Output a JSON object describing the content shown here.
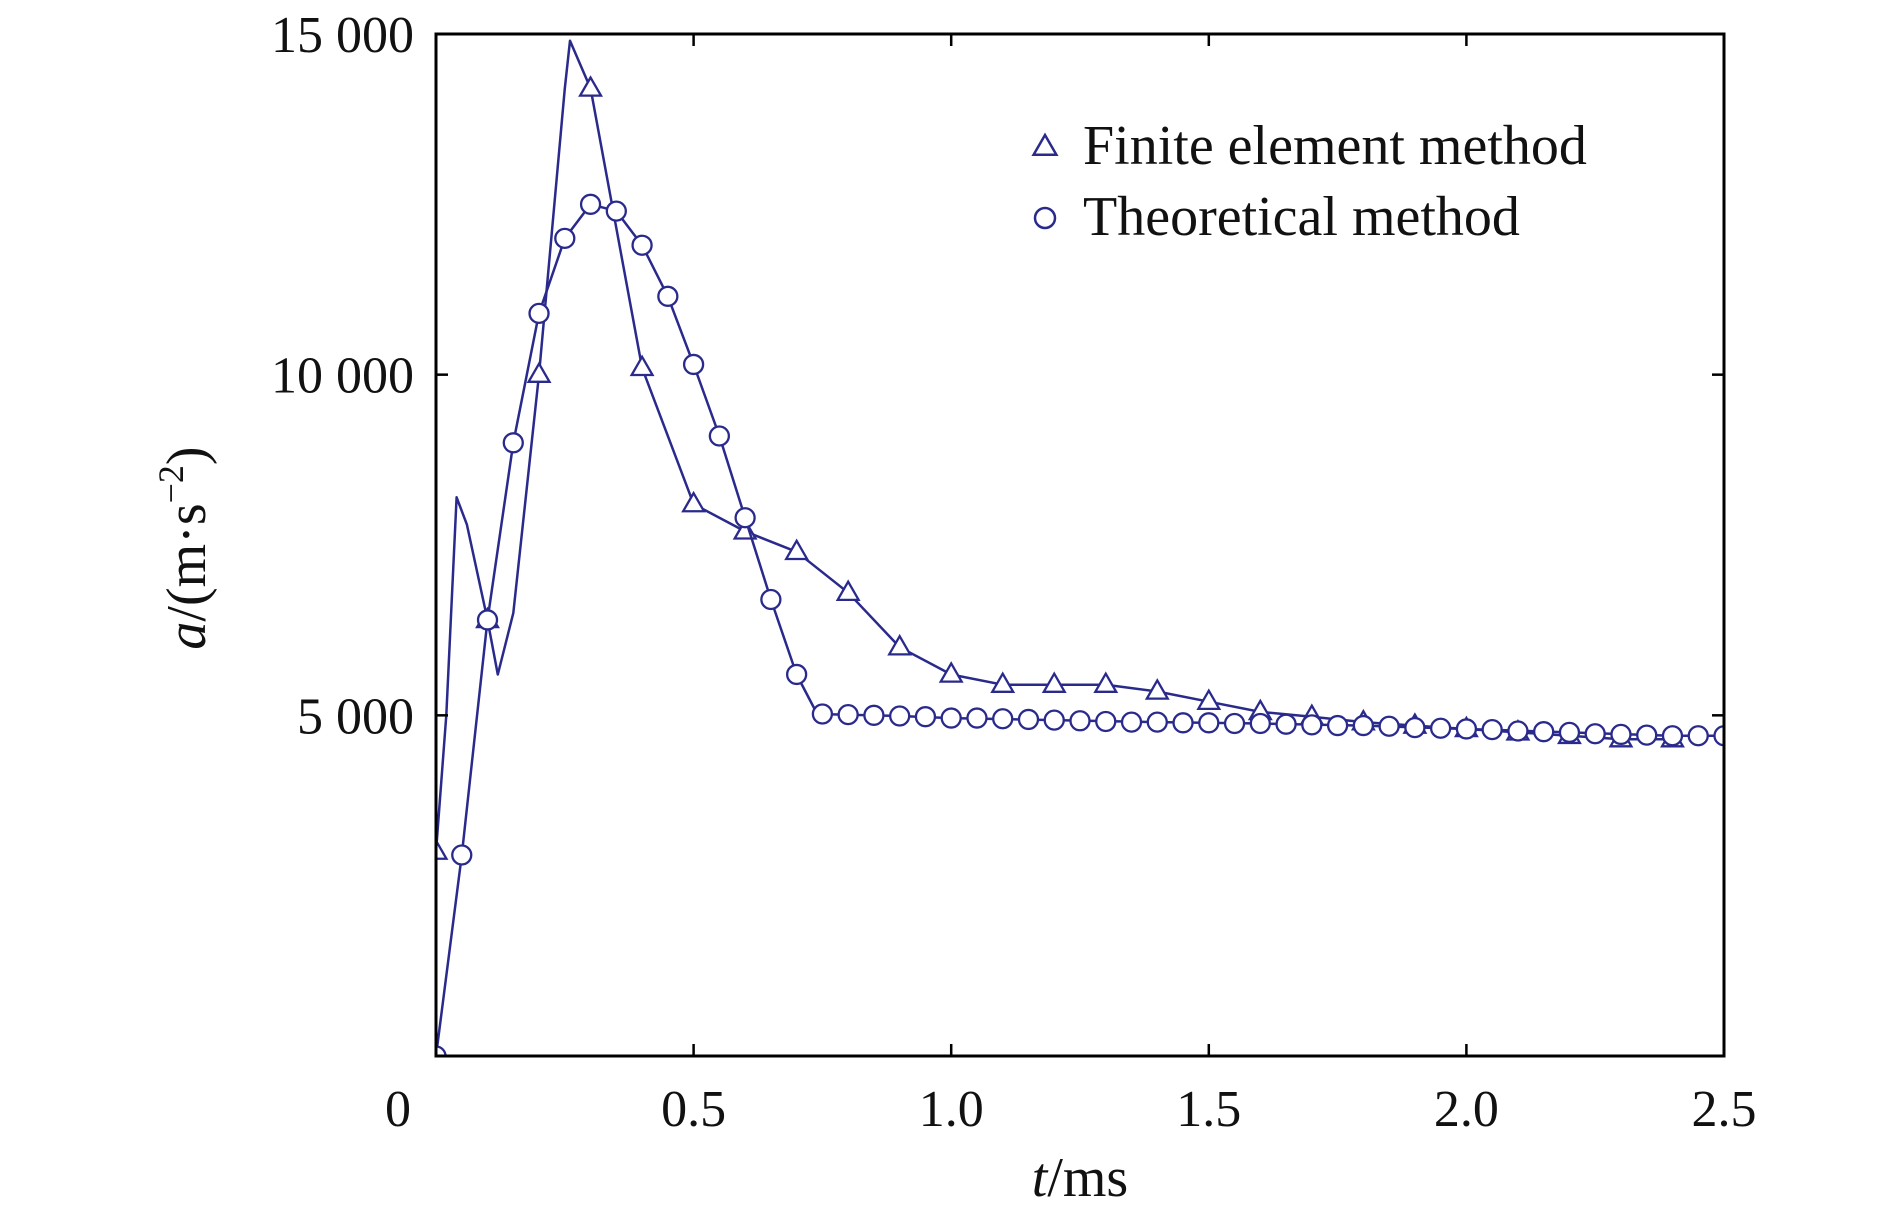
{
  "chart_data": {
    "type": "line",
    "title": "",
    "xlabel": {
      "var": "t",
      "unit": "/ms"
    },
    "ylabel": {
      "var": "a",
      "unit_open": "/(m·s",
      "sup": "−2",
      "unit_close": ")"
    },
    "xlim": [
      0,
      2.5
    ],
    "ylim": [
      0,
      15000
    ],
    "x_ticks": [
      {
        "value": 0,
        "label": "0"
      },
      {
        "value": 0.5,
        "label": "0.5"
      },
      {
        "value": 1.0,
        "label": "1.0"
      },
      {
        "value": 1.5,
        "label": "1.5"
      },
      {
        "value": 2.0,
        "label": "2.0"
      },
      {
        "value": 2.5,
        "label": "2.5"
      }
    ],
    "y_ticks": [
      {
        "value": 5000,
        "label": "5 000"
      },
      {
        "value": 10000,
        "label": "10 000"
      },
      {
        "value": 15000,
        "label": "15 000"
      }
    ],
    "grid": false,
    "legend_position": "top-right",
    "series": [
      {
        "name": "Finite element method",
        "marker": "triangle",
        "color": "#2a2a8c",
        "line": [
          [
            0,
            3000
          ],
          [
            0.02,
            5000
          ],
          [
            0.04,
            8200
          ],
          [
            0.06,
            7800
          ],
          [
            0.1,
            6400
          ],
          [
            0.12,
            5600
          ],
          [
            0.15,
            6500
          ],
          [
            0.2,
            10000
          ],
          [
            0.25,
            14200
          ],
          [
            0.26,
            14900
          ],
          [
            0.3,
            14200
          ],
          [
            0.4,
            10100
          ],
          [
            0.5,
            8100
          ],
          [
            0.6,
            7700
          ],
          [
            0.7,
            7400
          ],
          [
            0.8,
            6800
          ],
          [
            0.9,
            6000
          ],
          [
            1.0,
            5600
          ],
          [
            1.1,
            5450
          ],
          [
            1.2,
            5450
          ],
          [
            1.3,
            5450
          ],
          [
            1.4,
            5350
          ],
          [
            1.5,
            5200
          ],
          [
            1.6,
            5050
          ],
          [
            1.7,
            4980
          ],
          [
            1.8,
            4900
          ],
          [
            1.9,
            4850
          ],
          [
            2.0,
            4800
          ],
          [
            2.1,
            4750
          ],
          [
            2.2,
            4700
          ],
          [
            2.3,
            4650
          ],
          [
            2.4,
            4650
          ]
        ],
        "markers": [
          [
            0,
            3000
          ],
          [
            0.1,
            6400
          ],
          [
            0.2,
            10000
          ],
          [
            0.3,
            14200
          ],
          [
            0.4,
            10100
          ],
          [
            0.5,
            8100
          ],
          [
            0.6,
            7700
          ],
          [
            0.7,
            7400
          ],
          [
            0.8,
            6800
          ],
          [
            0.9,
            6000
          ],
          [
            1.0,
            5600
          ],
          [
            1.1,
            5450
          ],
          [
            1.2,
            5450
          ],
          [
            1.3,
            5450
          ],
          [
            1.4,
            5350
          ],
          [
            1.5,
            5200
          ],
          [
            1.6,
            5050
          ],
          [
            1.7,
            4980
          ],
          [
            1.8,
            4900
          ],
          [
            1.9,
            4850
          ],
          [
            2.0,
            4800
          ],
          [
            2.1,
            4750
          ],
          [
            2.2,
            4700
          ],
          [
            2.3,
            4650
          ],
          [
            2.4,
            4650
          ]
        ]
      },
      {
        "name": "Theoretical method",
        "marker": "circle",
        "color": "#2a2a8c",
        "line": [
          [
            0,
            0
          ],
          [
            0.05,
            2950
          ],
          [
            0.1,
            6400
          ],
          [
            0.15,
            9000
          ],
          [
            0.2,
            10900
          ],
          [
            0.25,
            12000
          ],
          [
            0.3,
            12500
          ],
          [
            0.35,
            12400
          ],
          [
            0.4,
            11900
          ],
          [
            0.45,
            11150
          ],
          [
            0.5,
            10150
          ],
          [
            0.55,
            9100
          ],
          [
            0.6,
            7900
          ],
          [
            0.65,
            6700
          ],
          [
            0.7,
            5600
          ],
          [
            0.74,
            5020
          ],
          [
            0.8,
            5010
          ],
          [
            0.9,
            4990
          ],
          [
            1.0,
            4960
          ],
          [
            1.2,
            4930
          ],
          [
            1.4,
            4900
          ],
          [
            1.6,
            4880
          ],
          [
            1.8,
            4850
          ],
          [
            2.0,
            4800
          ],
          [
            2.2,
            4750
          ],
          [
            2.4,
            4700
          ],
          [
            2.5,
            4700
          ]
        ],
        "markers": [
          [
            0,
            0
          ],
          [
            0.05,
            2950
          ],
          [
            0.1,
            6400
          ],
          [
            0.15,
            9000
          ],
          [
            0.2,
            10900
          ],
          [
            0.25,
            12000
          ],
          [
            0.3,
            12500
          ],
          [
            0.35,
            12400
          ],
          [
            0.4,
            11900
          ],
          [
            0.45,
            11150
          ],
          [
            0.5,
            10150
          ],
          [
            0.55,
            9100
          ],
          [
            0.6,
            7900
          ],
          [
            0.65,
            6700
          ],
          [
            0.7,
            5600
          ],
          [
            0.75,
            5020
          ],
          [
            0.8,
            5010
          ],
          [
            0.85,
            5000
          ],
          [
            0.9,
            4990
          ],
          [
            0.95,
            4980
          ],
          [
            1.0,
            4960
          ],
          [
            1.05,
            4960
          ],
          [
            1.1,
            4950
          ],
          [
            1.15,
            4940
          ],
          [
            1.2,
            4930
          ],
          [
            1.25,
            4920
          ],
          [
            1.3,
            4910
          ],
          [
            1.35,
            4900
          ],
          [
            1.4,
            4900
          ],
          [
            1.45,
            4890
          ],
          [
            1.5,
            4890
          ],
          [
            1.55,
            4880
          ],
          [
            1.6,
            4880
          ],
          [
            1.65,
            4870
          ],
          [
            1.7,
            4860
          ],
          [
            1.75,
            4850
          ],
          [
            1.8,
            4850
          ],
          [
            1.85,
            4840
          ],
          [
            1.9,
            4820
          ],
          [
            1.95,
            4810
          ],
          [
            2.0,
            4800
          ],
          [
            2.05,
            4790
          ],
          [
            2.1,
            4770
          ],
          [
            2.15,
            4760
          ],
          [
            2.2,
            4750
          ],
          [
            2.25,
            4730
          ],
          [
            2.3,
            4720
          ],
          [
            2.35,
            4710
          ],
          [
            2.4,
            4700
          ],
          [
            2.45,
            4700
          ],
          [
            2.5,
            4700
          ]
        ]
      }
    ]
  }
}
